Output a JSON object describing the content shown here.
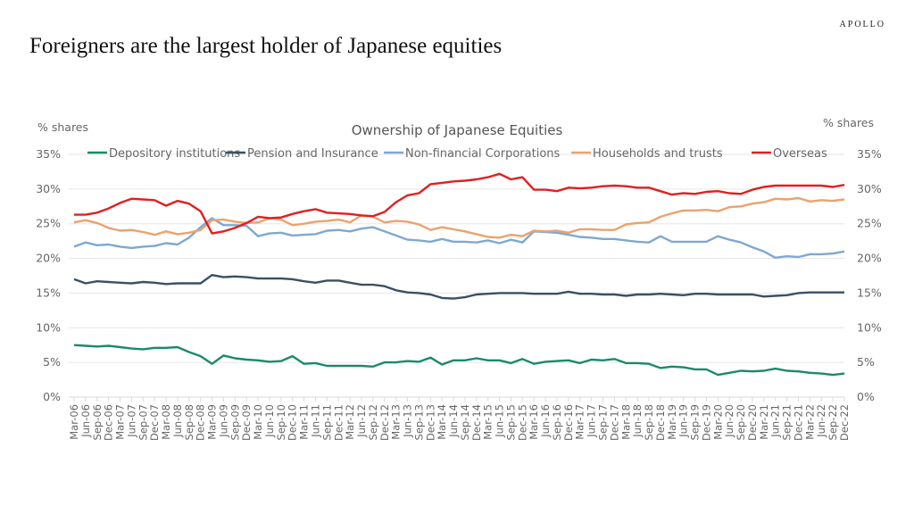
{
  "header": {
    "logo": "APOLLO",
    "title": "Foreigners are the largest holder of  Japanese equities"
  },
  "chart_data": {
    "type": "line",
    "title": "Ownership of Japanese Equities",
    "ylabel_left": "% shares",
    "ylabel_right": "% shares",
    "ylim": [
      0,
      35
    ],
    "yticks": [
      "0%",
      "5%",
      "10%",
      "15%",
      "20%",
      "25%",
      "30%",
      "35%"
    ],
    "grid": true,
    "legend_position": "top",
    "x": [
      "Mar-06",
      "Jun-06",
      "Sep-06",
      "Dec-06",
      "Mar-07",
      "Jun-07",
      "Sep-07",
      "Dec-07",
      "Mar-08",
      "Jun-08",
      "Sep-08",
      "Dec-08",
      "Mar-09",
      "Jun-09",
      "Sep-09",
      "Dec-09",
      "Mar-10",
      "Jun-10",
      "Sep-10",
      "Dec-10",
      "Mar-11",
      "Jun-11",
      "Sep-11",
      "Dec-11",
      "Mar-12",
      "Jun-12",
      "Sep-12",
      "Dec-12",
      "Mar-13",
      "Jun-13",
      "Sep-13",
      "Dec-13",
      "Mar-14",
      "Jun-14",
      "Sep-14",
      "Dec-14",
      "Mar-15",
      "Jun-15",
      "Sep-15",
      "Dec-15",
      "Mar-16",
      "Jun-16",
      "Sep-16",
      "Dec-16",
      "Mar-17",
      "Jun-17",
      "Sep-17",
      "Dec-17",
      "Mar-18",
      "Jun-18",
      "Sep-18",
      "Dec-18",
      "Mar-19",
      "Jun-19",
      "Sep-19",
      "Dec-19",
      "Mar-20",
      "Jun-20",
      "Sep-20",
      "Dec-20",
      "Mar-21",
      "Jun-21",
      "Sep-21",
      "Dec-21",
      "Mar-22",
      "Jun-22",
      "Sep-22",
      "Dec-22"
    ],
    "series": [
      {
        "name": "Depository institutions",
        "color": "#1a8a6c",
        "values": [
          7.5,
          7.4,
          7.3,
          7.4,
          7.2,
          7.0,
          6.9,
          7.1,
          7.1,
          7.2,
          6.5,
          5.9,
          4.8,
          6.0,
          5.6,
          5.4,
          5.3,
          5.1,
          5.2,
          5.9,
          4.8,
          4.9,
          4.5,
          4.5,
          4.5,
          4.5,
          4.4,
          5.0,
          5.0,
          5.2,
          5.1,
          5.7,
          4.7,
          5.3,
          5.3,
          5.6,
          5.3,
          5.3,
          4.9,
          5.5,
          4.8,
          5.1,
          5.2,
          5.3,
          4.9,
          5.4,
          5.3,
          5.5,
          4.9,
          4.9,
          4.8,
          4.2,
          4.4,
          4.3,
          4.0,
          4.0,
          3.2,
          3.5,
          3.8,
          3.7,
          3.8,
          4.1,
          3.8,
          3.7,
          3.5,
          3.4,
          3.2,
          3.4
        ]
      },
      {
        "name": "Pension and Insurance",
        "color": "#3b4f66",
        "values": [
          17.0,
          16.4,
          16.7,
          16.6,
          16.5,
          16.4,
          16.6,
          16.5,
          16.3,
          16.4,
          16.4,
          16.4,
          17.6,
          17.3,
          17.4,
          17.3,
          17.1,
          17.1,
          17.1,
          17.0,
          16.7,
          16.5,
          16.8,
          16.8,
          16.5,
          16.2,
          16.2,
          16.0,
          15.4,
          15.1,
          15.0,
          14.8,
          14.3,
          14.2,
          14.4,
          14.8,
          14.9,
          15.0,
          15.0,
          15.0,
          14.9,
          14.9,
          14.9,
          15.2,
          14.9,
          14.9,
          14.8,
          14.8,
          14.6,
          14.8,
          14.8,
          14.9,
          14.8,
          14.7,
          14.9,
          14.9,
          14.8,
          14.8,
          14.8,
          14.8,
          14.5,
          14.6,
          14.7,
          15.0,
          15.1,
          15.1,
          15.1,
          15.1
        ]
      },
      {
        "name": "Non-financial Corporations",
        "color": "#7ea8d2",
        "values": [
          21.7,
          22.3,
          21.9,
          22.0,
          21.7,
          21.5,
          21.7,
          21.8,
          22.2,
          22.0,
          23.0,
          24.5,
          25.8,
          24.8,
          24.8,
          24.7,
          23.2,
          23.6,
          23.7,
          23.3,
          23.4,
          23.5,
          24.0,
          24.1,
          23.9,
          24.3,
          24.5,
          23.9,
          23.3,
          22.7,
          22.6,
          22.4,
          22.8,
          22.4,
          22.4,
          22.3,
          22.6,
          22.2,
          22.7,
          22.3,
          23.9,
          23.8,
          23.7,
          23.4,
          23.1,
          23.0,
          22.8,
          22.8,
          22.6,
          22.4,
          22.3,
          23.2,
          22.4,
          22.4,
          22.4,
          22.4,
          23.2,
          22.7,
          22.3,
          21.6,
          21.0,
          20.1,
          20.3,
          20.2,
          20.6,
          20.6,
          20.7,
          21.0
        ]
      },
      {
        "name": "Households and trusts",
        "color": "#eba26e",
        "values": [
          25.2,
          25.5,
          25.1,
          24.4,
          24.0,
          24.1,
          23.8,
          23.4,
          23.9,
          23.5,
          23.7,
          24.1,
          25.5,
          25.6,
          25.3,
          25.1,
          25.2,
          25.8,
          25.6,
          24.8,
          25.0,
          25.3,
          25.4,
          25.6,
          25.2,
          26.2,
          26.0,
          25.2,
          25.4,
          25.3,
          24.9,
          24.1,
          24.5,
          24.2,
          23.9,
          23.5,
          23.1,
          23.0,
          23.4,
          23.2,
          24.0,
          23.9,
          24.0,
          23.7,
          24.2,
          24.2,
          24.1,
          24.1,
          24.9,
          25.1,
          25.2,
          26.0,
          26.5,
          26.9,
          26.9,
          27.0,
          26.8,
          27.4,
          27.5,
          27.9,
          28.1,
          28.6,
          28.5,
          28.7,
          28.2,
          28.4,
          28.3,
          28.5
        ]
      },
      {
        "name": "Overseas",
        "color": "#e0201e",
        "values": [
          26.3,
          26.3,
          26.6,
          27.2,
          28.0,
          28.6,
          28.5,
          28.4,
          27.6,
          28.3,
          27.9,
          26.8,
          23.6,
          23.9,
          24.4,
          25.1,
          26.0,
          25.8,
          25.9,
          26.4,
          26.8,
          27.1,
          26.6,
          26.5,
          26.4,
          26.2,
          26.1,
          26.7,
          28.1,
          29.1,
          29.4,
          30.7,
          30.9,
          31.1,
          31.2,
          31.4,
          31.7,
          32.2,
          31.4,
          31.7,
          29.9,
          29.9,
          29.7,
          30.2,
          30.1,
          30.2,
          30.4,
          30.5,
          30.4,
          30.2,
          30.2,
          29.7,
          29.2,
          29.4,
          29.3,
          29.6,
          29.7,
          29.4,
          29.3,
          29.9,
          30.3,
          30.5,
          30.5,
          30.5,
          30.5,
          30.5,
          30.3,
          30.6
        ]
      }
    ]
  }
}
